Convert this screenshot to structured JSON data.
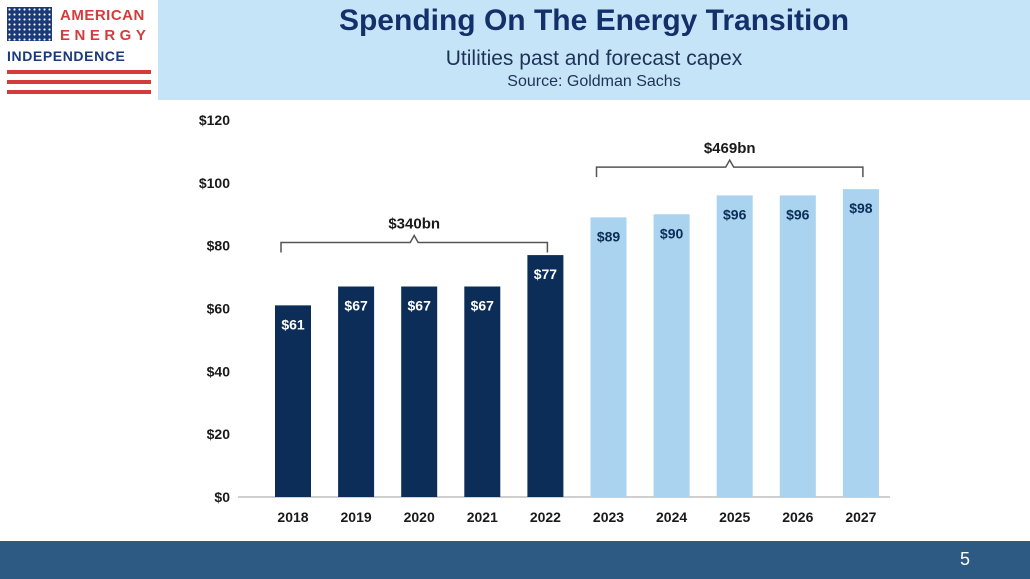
{
  "logo": {
    "line1": "AMERICAN",
    "line2": "ENERGY",
    "line3": "INDEPENDENCE",
    "colors": {
      "red": "#d63b3b",
      "blue": "#1b3a78"
    },
    "icon": "us-flag-icon"
  },
  "header": {
    "title": "Spending On The Energy Transition",
    "subtitle": "Utilities past and forecast capex",
    "source": "Source: Goldman Sachs"
  },
  "chart_data": {
    "type": "bar",
    "categories": [
      "2018",
      "2019",
      "2020",
      "2021",
      "2022",
      "2023",
      "2024",
      "2025",
      "2026",
      "2027"
    ],
    "values": [
      61,
      67,
      67,
      67,
      77,
      89,
      90,
      96,
      96,
      98
    ],
    "value_labels": [
      "$61",
      "$67",
      "$67",
      "$67",
      "$77",
      "$89",
      "$90",
      "$96",
      "$96",
      "$98"
    ],
    "series_type": [
      "past",
      "past",
      "past",
      "past",
      "past",
      "forecast",
      "forecast",
      "forecast",
      "forecast",
      "forecast"
    ],
    "colors": {
      "past": "#0b2d57",
      "forecast": "#a9d3ef",
      "past_label": "#ffffff",
      "forecast_label": "#0b2d57"
    },
    "ylim": [
      0,
      120
    ],
    "yticks": [
      0,
      20,
      40,
      60,
      80,
      100,
      120
    ],
    "ytick_labels": [
      "$0",
      "$20",
      "$40",
      "$60",
      "$80",
      "$100",
      "$120"
    ],
    "title": "",
    "xlabel": "",
    "ylabel": "",
    "grid": false,
    "annotations": [
      {
        "label": "$340bn",
        "from_index": 0,
        "to_index": 4,
        "bracket_value": 81
      },
      {
        "label": "$469bn",
        "from_index": 5,
        "to_index": 9,
        "bracket_value": 105
      }
    ]
  },
  "footer": {
    "page_number": "5"
  }
}
